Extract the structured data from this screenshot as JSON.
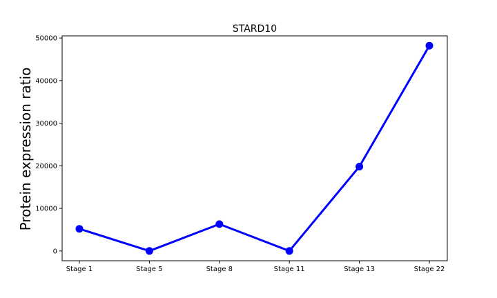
{
  "chart_data": {
    "type": "line",
    "title": "STARD10",
    "xlabel": "",
    "ylabel": "Protein expression ratio",
    "categories": [
      "Stage 1",
      "Stage 5",
      "Stage 8",
      "Stage 11",
      "Stage 13",
      "Stage 22"
    ],
    "series": [
      {
        "values": [
          5200,
          0,
          6300,
          0,
          19800,
          48200
        ],
        "color": "#0000ff"
      }
    ],
    "ylim": [
      -2300,
      50500
    ],
    "yticks": [
      0,
      10000,
      20000,
      30000,
      40000,
      50000
    ],
    "grid": false,
    "legend": "none"
  }
}
